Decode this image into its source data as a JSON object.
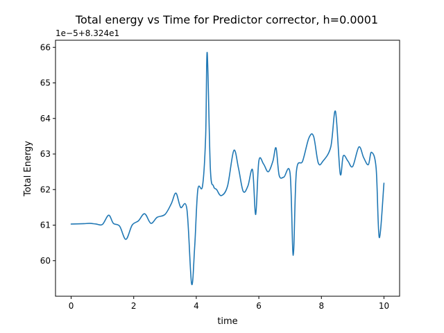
{
  "chart_data": {
    "type": "line",
    "title": "Total energy vs Time for Predictor corrector, h=0.0001",
    "xlabel": "time",
    "ylabel": "Total Energy",
    "offset_label": "1e−5+8.324e1",
    "xlim": [
      -0.5,
      10.5
    ],
    "ylim": [
      59.0,
      66.2
    ],
    "xticks": [
      0,
      2,
      4,
      6,
      8,
      10
    ],
    "xtick_labels": [
      "0",
      "2",
      "4",
      "6",
      "8",
      "10"
    ],
    "yticks": [
      60,
      61,
      62,
      63,
      64,
      65,
      66
    ],
    "ytick_labels": [
      "60",
      "61",
      "62",
      "63",
      "64",
      "65",
      "66"
    ],
    "grid": false,
    "series": [
      {
        "color": "#1f77b4",
        "x": [
          0.0,
          0.4,
          0.6,
          0.8,
          1.0,
          1.2,
          1.35,
          1.55,
          1.75,
          1.95,
          2.15,
          2.35,
          2.55,
          2.75,
          3.0,
          3.2,
          3.35,
          3.5,
          3.7,
          3.85,
          3.95,
          4.05,
          4.2,
          4.3,
          4.35,
          4.45,
          4.55,
          4.65,
          4.8,
          5.0,
          5.2,
          5.35,
          5.5,
          5.65,
          5.8,
          5.9,
          6.0,
          6.15,
          6.3,
          6.45,
          6.55,
          6.65,
          6.8,
          7.0,
          7.1,
          7.2,
          7.4,
          7.6,
          7.75,
          7.9,
          8.05,
          8.3,
          8.45,
          8.6,
          8.7,
          8.85,
          9.0,
          9.2,
          9.35,
          9.5,
          9.6,
          9.75,
          9.85,
          10.0
        ],
        "y": [
          61.03,
          61.04,
          61.05,
          61.03,
          61.02,
          61.28,
          61.05,
          60.97,
          60.6,
          61.0,
          61.12,
          61.32,
          61.05,
          61.22,
          61.3,
          61.6,
          61.9,
          61.5,
          61.45,
          59.35,
          60.4,
          62.0,
          62.1,
          63.5,
          65.85,
          62.6,
          62.1,
          62.0,
          61.83,
          62.1,
          63.1,
          62.6,
          61.95,
          62.1,
          62.55,
          61.3,
          62.8,
          62.72,
          62.5,
          62.8,
          63.17,
          62.4,
          62.35,
          62.45,
          60.15,
          62.5,
          62.8,
          63.45,
          63.5,
          62.75,
          62.8,
          63.2,
          64.2,
          62.45,
          62.95,
          62.8,
          62.65,
          63.2,
          62.9,
          62.7,
          63.05,
          62.6,
          60.65,
          62.18
        ]
      }
    ]
  }
}
